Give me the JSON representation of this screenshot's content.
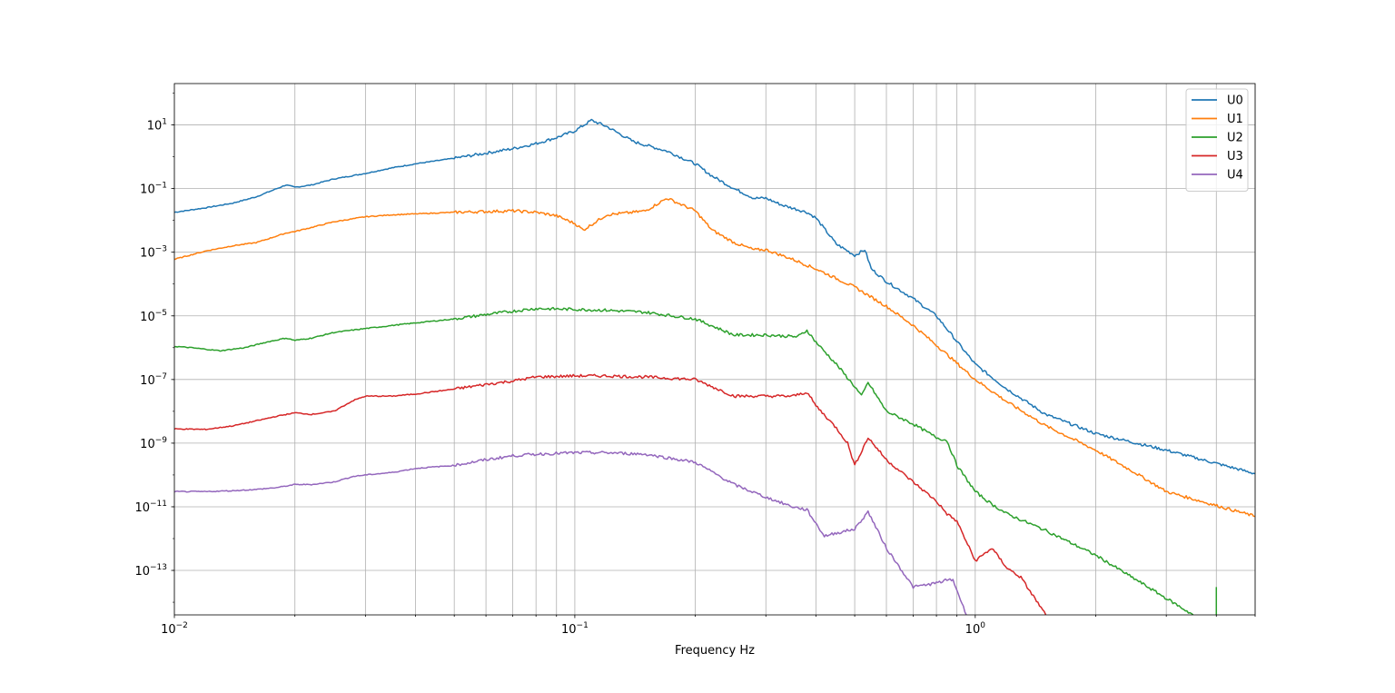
{
  "chart_data": {
    "type": "line",
    "xlabel": "Frequency Hz",
    "ylabel": "",
    "xscale": "log",
    "yscale": "log",
    "xlim": [
      0.01,
      5.0
    ],
    "ylim": [
      4e-15,
      200
    ],
    "grid": "on (major and minor on x, major on y)",
    "legend_position": "top-right",
    "x_tick_labels": [
      {
        "value": 0.01,
        "base": "10",
        "exp": "−2"
      },
      {
        "value": 0.1,
        "base": "10",
        "exp": "−1"
      },
      {
        "value": 1,
        "base": "10",
        "exp": "0"
      }
    ],
    "y_tick_labels": [
      {
        "value": 10,
        "base": "10",
        "exp": "1"
      },
      {
        "value": 0.1,
        "base": "10",
        "exp": "−1"
      },
      {
        "value": 0.001,
        "base": "10",
        "exp": "−3"
      },
      {
        "value": 1e-05,
        "base": "10",
        "exp": "−5"
      },
      {
        "value": 1e-07,
        "base": "10",
        "exp": "−7"
      },
      {
        "value": 1e-09,
        "base": "10",
        "exp": "−9"
      },
      {
        "value": 1e-11,
        "base": "10",
        "exp": "−11"
      },
      {
        "value": 1e-13,
        "base": "10",
        "exp": "−13"
      }
    ],
    "series": [
      {
        "name": "U0",
        "color": "#1f77b4",
        "x": [
          0.01,
          0.012,
          0.014,
          0.016,
          0.019,
          0.02,
          0.022,
          0.025,
          0.03,
          0.035,
          0.04,
          0.05,
          0.06,
          0.07,
          0.08,
          0.09,
          0.1,
          0.11,
          0.12,
          0.14,
          0.17,
          0.2,
          0.22,
          0.25,
          0.28,
          0.3,
          0.33,
          0.38,
          0.4,
          0.45,
          0.5,
          0.53,
          0.55,
          0.6,
          0.7,
          0.8,
          1.0,
          1.2,
          1.5,
          2.0,
          3.0,
          5.0
        ],
        "y": [
          0.018,
          0.025,
          0.035,
          0.055,
          0.13,
          0.11,
          0.13,
          0.2,
          0.3,
          0.45,
          0.6,
          0.9,
          1.3,
          1.8,
          2.6,
          4.0,
          6.5,
          14.0,
          9.0,
          3.0,
          1.5,
          0.6,
          0.25,
          0.1,
          0.05,
          0.05,
          0.03,
          0.018,
          0.012,
          0.0018,
          0.0008,
          0.0012,
          0.0003,
          0.00012,
          3.5e-05,
          1e-05,
          3e-07,
          5e-08,
          8e-09,
          2e-09,
          6e-10,
          1.1e-10
        ]
      },
      {
        "name": "U1",
        "color": "#ff7f0e",
        "x": [
          0.01,
          0.012,
          0.014,
          0.016,
          0.019,
          0.02,
          0.022,
          0.025,
          0.03,
          0.035,
          0.04,
          0.05,
          0.06,
          0.07,
          0.08,
          0.09,
          0.1,
          0.105,
          0.12,
          0.14,
          0.15,
          0.17,
          0.2,
          0.22,
          0.25,
          0.28,
          0.3,
          0.35,
          0.4,
          0.5,
          0.6,
          0.7,
          0.8,
          1.0,
          1.2,
          1.5,
          2.0,
          2.5,
          3.0,
          5.0
        ],
        "y": [
          0.0006,
          0.0011,
          0.0016,
          0.002,
          0.004,
          0.0045,
          0.006,
          0.009,
          0.013,
          0.015,
          0.016,
          0.018,
          0.019,
          0.02,
          0.018,
          0.014,
          0.008,
          0.005,
          0.015,
          0.018,
          0.02,
          0.05,
          0.02,
          0.005,
          0.002,
          0.0012,
          0.0012,
          0.0006,
          0.0003,
          8e-05,
          2e-05,
          5e-06,
          1.2e-06,
          1e-07,
          2e-08,
          3.5e-09,
          6e-10,
          1.2e-10,
          3e-11,
          5e-12
        ]
      },
      {
        "name": "U2",
        "color": "#2ca02c",
        "x": [
          0.01,
          0.011,
          0.013,
          0.015,
          0.017,
          0.019,
          0.02,
          0.022,
          0.025,
          0.03,
          0.035,
          0.04,
          0.05,
          0.06,
          0.07,
          0.08,
          0.1,
          0.12,
          0.15,
          0.2,
          0.25,
          0.3,
          0.36,
          0.38,
          0.4,
          0.45,
          0.5,
          0.52,
          0.54,
          0.6,
          0.7,
          0.8,
          0.85,
          0.9,
          1.0,
          1.1,
          1.2,
          1.5,
          2.0,
          2.7,
          3.5
        ],
        "y": [
          1.1e-06,
          1e-06,
          8e-07,
          1e-06,
          1.5e-06,
          2e-06,
          1.7e-06,
          2e-06,
          3e-06,
          4e-06,
          5e-06,
          6e-06,
          8e-06,
          1.1e-05,
          1.4e-05,
          1.7e-05,
          1.6e-05,
          1.5e-05,
          1.3e-05,
          8e-06,
          2.5e-06,
          2.5e-06,
          2.2e-06,
          3.5e-06,
          1.5e-06,
          3e-07,
          6e-08,
          3e-08,
          8e-08,
          1e-08,
          4e-09,
          1.5e-09,
          1.2e-09,
          2e-10,
          3e-11,
          1.2e-11,
          6e-12,
          1.8e-12,
          3e-13,
          3e-14,
          4e-15
        ]
      },
      {
        "name": "U3",
        "color": "#d62728",
        "x": [
          0.01,
          0.012,
          0.014,
          0.016,
          0.018,
          0.02,
          0.022,
          0.025,
          0.028,
          0.03,
          0.035,
          0.04,
          0.05,
          0.06,
          0.07,
          0.08,
          0.1,
          0.12,
          0.15,
          0.2,
          0.25,
          0.3,
          0.35,
          0.38,
          0.4,
          0.45,
          0.48,
          0.5,
          0.54,
          0.6,
          0.7,
          0.8,
          0.85,
          0.9,
          1.0,
          1.1,
          1.2,
          1.3,
          1.5
        ],
        "y": [
          2.8e-09,
          2.7e-09,
          3.5e-09,
          5e-09,
          7e-09,
          9e-09,
          8e-09,
          1e-08,
          2.2e-08,
          3e-08,
          3e-08,
          3.5e-08,
          5e-08,
          7e-08,
          9e-08,
          1.2e-07,
          1.3e-07,
          1.3e-07,
          1.2e-07,
          1e-07,
          3e-08,
          3e-08,
          3e-08,
          4e-08,
          1.5e-08,
          3e-09,
          1e-09,
          2e-10,
          1.5e-09,
          3e-10,
          6e-11,
          1.5e-11,
          6e-12,
          3.5e-12,
          2e-13,
          5e-13,
          1.2e-13,
          6e-14,
          4e-15
        ]
      },
      {
        "name": "U4",
        "color": "#9467bd",
        "x": [
          0.01,
          0.012,
          0.014,
          0.016,
          0.018,
          0.02,
          0.022,
          0.025,
          0.028,
          0.03,
          0.035,
          0.04,
          0.05,
          0.06,
          0.07,
          0.08,
          0.1,
          0.12,
          0.15,
          0.2,
          0.25,
          0.3,
          0.35,
          0.38,
          0.4,
          0.42,
          0.45,
          0.5,
          0.54,
          0.6,
          0.7,
          0.8,
          0.85,
          0.88,
          0.95
        ],
        "y": [
          3e-11,
          3e-11,
          3.2e-11,
          3.5e-11,
          4e-11,
          5e-11,
          5e-11,
          6e-11,
          9e-11,
          1e-10,
          1.2e-10,
          1.6e-10,
          2e-10,
          3e-10,
          4e-10,
          4.5e-10,
          5e-10,
          5e-10,
          4.5e-10,
          2.5e-10,
          5e-11,
          2e-11,
          1e-11,
          8e-12,
          3e-12,
          1.2e-12,
          1.5e-12,
          2e-12,
          7e-12,
          5e-13,
          3e-14,
          4e-14,
          5e-14,
          5e-14,
          4e-15
        ]
      }
    ],
    "annotations": [
      {
        "series": "U2",
        "type": "spike",
        "x": 4.0,
        "y_from": 4e-15,
        "y_to": 3e-14
      }
    ]
  }
}
